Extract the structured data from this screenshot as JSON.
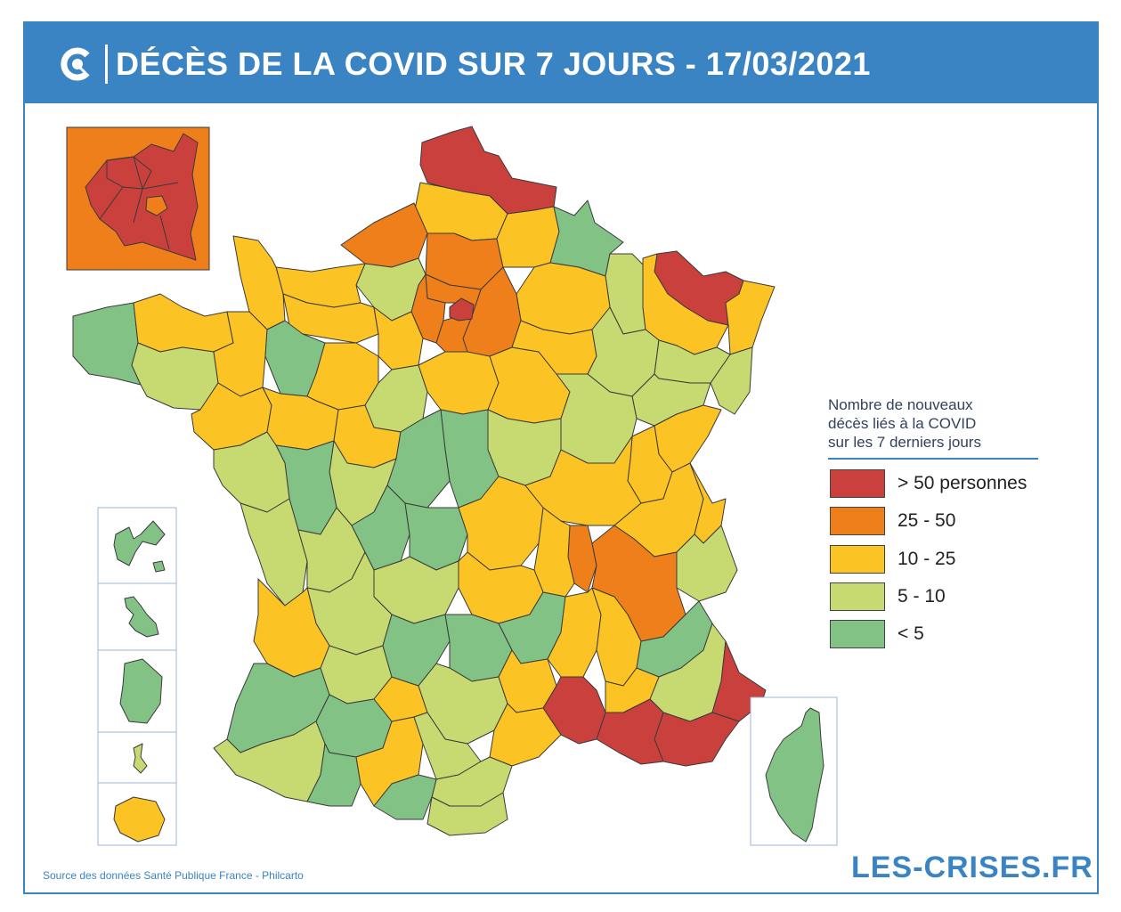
{
  "header": {
    "title": "DÉCÈS DE LA COVID SUR 7 JOURS - 17/03/2021",
    "logo_icon": "les-crises-logo-icon",
    "background_color": "#3b84c4"
  },
  "legend": {
    "title_lines": [
      "Nombre de nouveaux",
      "décès liés à la COVID",
      "sur les 7 derniers jours"
    ],
    "items": [
      {
        "label": "> 50 personnes",
        "color": "#c9403c"
      },
      {
        "label": "25 - 50",
        "color": "#ef7f1a"
      },
      {
        "label": "10 - 25",
        "color": "#fcc324"
      },
      {
        "label": "5 - 10",
        "color": "#c7da71"
      },
      {
        "label": "< 5",
        "color": "#82c385"
      }
    ]
  },
  "map": {
    "country": "France",
    "insets": [
      "Paris et petite couronne",
      "Guadeloupe",
      "Martinique",
      "Guyane",
      "Mayotte",
      "La Réunion",
      "Corse"
    ],
    "category_colors": {
      "gt50": "#c9403c",
      "c25_50": "#ef7f1a",
      "c10_25": "#fcc324",
      "c5_10": "#c7da71",
      "lt5": "#82c385"
    }
  },
  "footer": {
    "source": "Source des données Santé Publique France - Philcarto",
    "brand": "LES-CRISES.FR"
  }
}
